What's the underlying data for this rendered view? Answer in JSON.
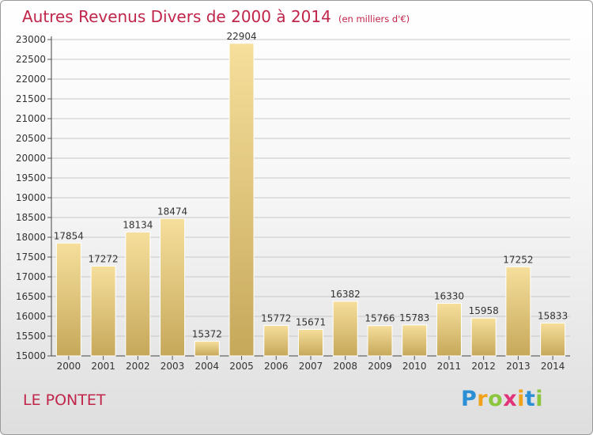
{
  "title": "Autres Revenus Divers de 2000 à 2014",
  "subtitle": "(en milliers d'€)",
  "place": "LE PONTET",
  "logo": {
    "letters": [
      {
        "ch": "P",
        "color": "#2b8fd6"
      },
      {
        "ch": "r",
        "color": "#f0a21a"
      },
      {
        "ch": "o",
        "color": "#8cc63f"
      },
      {
        "ch": "x",
        "color": "#e2337a"
      },
      {
        "ch": "i",
        "color": "#f0a21a"
      },
      {
        "ch": "t",
        "color": "#2b8fd6"
      },
      {
        "ch": "i",
        "color": "#8cc63f"
      }
    ]
  },
  "colors": {
    "title": "#c0254a",
    "bar_light": "#f6df9c",
    "bar_dark": "#c6a85a",
    "grid": "#c8c8c8",
    "text": "#333333"
  },
  "chart_data": {
    "type": "bar",
    "categories": [
      "2000",
      "2001",
      "2002",
      "2003",
      "2004",
      "2005",
      "2006",
      "2007",
      "2008",
      "2009",
      "2010",
      "2011",
      "2012",
      "2013",
      "2014"
    ],
    "values": [
      17854,
      17272,
      18134,
      18474,
      15372,
      22904,
      15772,
      15671,
      16382,
      15766,
      15783,
      16330,
      15958,
      17252,
      15833
    ],
    "ylim": [
      15000,
      23000
    ],
    "yticks": [
      15000,
      15500,
      16000,
      16500,
      17000,
      17500,
      18000,
      18500,
      19000,
      19500,
      20000,
      20500,
      21000,
      21500,
      22000,
      22500,
      23000
    ],
    "grid": true,
    "data_labels": true
  }
}
